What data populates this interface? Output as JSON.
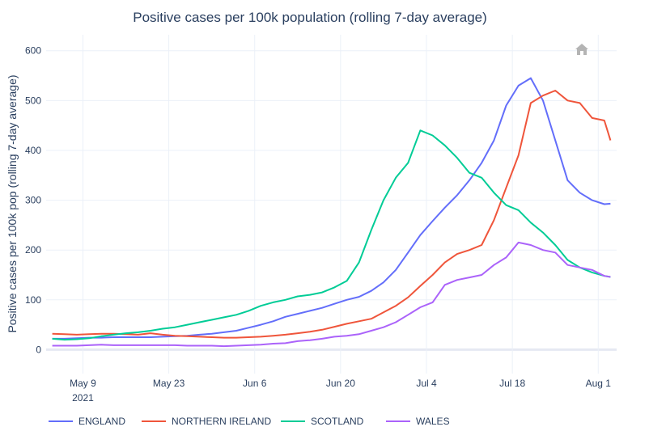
{
  "chart_data": {
    "type": "line",
    "title": "Positive cases per 100k population (rolling 7-day average)",
    "xlabel": "",
    "ylabel": "Positive cases per 100k pop (rolling 7-day average)",
    "xlim": [
      "2021-05-03",
      "2021-08-04"
    ],
    "ylim": [
      -48,
      632
    ],
    "grid": true,
    "legend_placement": "bottom",
    "x_ticks": [
      {
        "date": "2021-05-09",
        "label": "May 9",
        "sub": "2021"
      },
      {
        "date": "2021-05-23",
        "label": "May 23"
      },
      {
        "date": "2021-06-06",
        "label": "Jun 6"
      },
      {
        "date": "2021-06-20",
        "label": "Jun 20"
      },
      {
        "date": "2021-07-04",
        "label": "Jul 4"
      },
      {
        "date": "2021-07-18",
        "label": "Jul 18"
      },
      {
        "date": "2021-08-01",
        "label": "Aug 1"
      }
    ],
    "y_ticks": [
      0,
      100,
      200,
      300,
      400,
      500,
      600
    ],
    "x": [
      "2021-05-04",
      "2021-05-06",
      "2021-05-08",
      "2021-05-10",
      "2021-05-12",
      "2021-05-14",
      "2021-05-16",
      "2021-05-18",
      "2021-05-20",
      "2021-05-22",
      "2021-05-24",
      "2021-05-26",
      "2021-05-28",
      "2021-05-30",
      "2021-06-01",
      "2021-06-03",
      "2021-06-05",
      "2021-06-07",
      "2021-06-09",
      "2021-06-11",
      "2021-06-13",
      "2021-06-15",
      "2021-06-17",
      "2021-06-19",
      "2021-06-21",
      "2021-06-23",
      "2021-06-25",
      "2021-06-27",
      "2021-06-29",
      "2021-07-01",
      "2021-07-03",
      "2021-07-05",
      "2021-07-07",
      "2021-07-09",
      "2021-07-11",
      "2021-07-13",
      "2021-07-15",
      "2021-07-17",
      "2021-07-19",
      "2021-07-21",
      "2021-07-23",
      "2021-07-25",
      "2021-07-27",
      "2021-07-29",
      "2021-07-31",
      "2021-08-02",
      "2021-08-03"
    ],
    "series": [
      {
        "name": "ENGLAND",
        "color": "#636efa",
        "values": [
          22,
          22,
          23,
          24,
          24,
          25,
          25,
          25,
          25,
          26,
          27,
          28,
          30,
          32,
          35,
          38,
          44,
          50,
          57,
          66,
          72,
          78,
          84,
          92,
          100,
          106,
          118,
          135,
          160,
          195,
          230,
          258,
          285,
          310,
          340,
          375,
          420,
          490,
          530,
          545,
          500,
          420,
          340,
          315,
          300,
          292,
          293
        ]
      },
      {
        "name": "NORTHERN IRELAND",
        "color": "#ef553b",
        "values": [
          32,
          31,
          30,
          31,
          32,
          32,
          31,
          30,
          33,
          30,
          28,
          27,
          26,
          25,
          24,
          24,
          25,
          26,
          28,
          30,
          33,
          36,
          40,
          46,
          52,
          57,
          62,
          75,
          88,
          105,
          128,
          150,
          175,
          192,
          200,
          210,
          260,
          325,
          390,
          495,
          510,
          520,
          500,
          495,
          465,
          460,
          420
        ]
      },
      {
        "name": "SCOTLAND",
        "color": "#00cc96",
        "values": [
          22,
          20,
          21,
          23,
          27,
          30,
          33,
          35,
          38,
          42,
          45,
          50,
          55,
          60,
          65,
          70,
          78,
          88,
          95,
          100,
          107,
          110,
          115,
          125,
          138,
          175,
          240,
          300,
          345,
          375,
          440,
          430,
          410,
          385,
          355,
          345,
          315,
          290,
          280,
          255,
          235,
          210,
          180,
          165,
          155,
          148,
          146
        ]
      },
      {
        "name": "WALES",
        "color": "#ab63fa",
        "values": [
          8,
          8,
          8,
          9,
          10,
          9,
          9,
          9,
          9,
          9,
          9,
          8,
          8,
          8,
          7,
          8,
          9,
          10,
          12,
          13,
          17,
          19,
          22,
          26,
          28,
          31,
          38,
          45,
          55,
          70,
          85,
          95,
          130,
          140,
          145,
          150,
          170,
          185,
          215,
          210,
          200,
          195,
          170,
          165,
          160,
          148,
          146
        ]
      }
    ]
  },
  "toolbar": {
    "home_icon": "home-icon"
  }
}
